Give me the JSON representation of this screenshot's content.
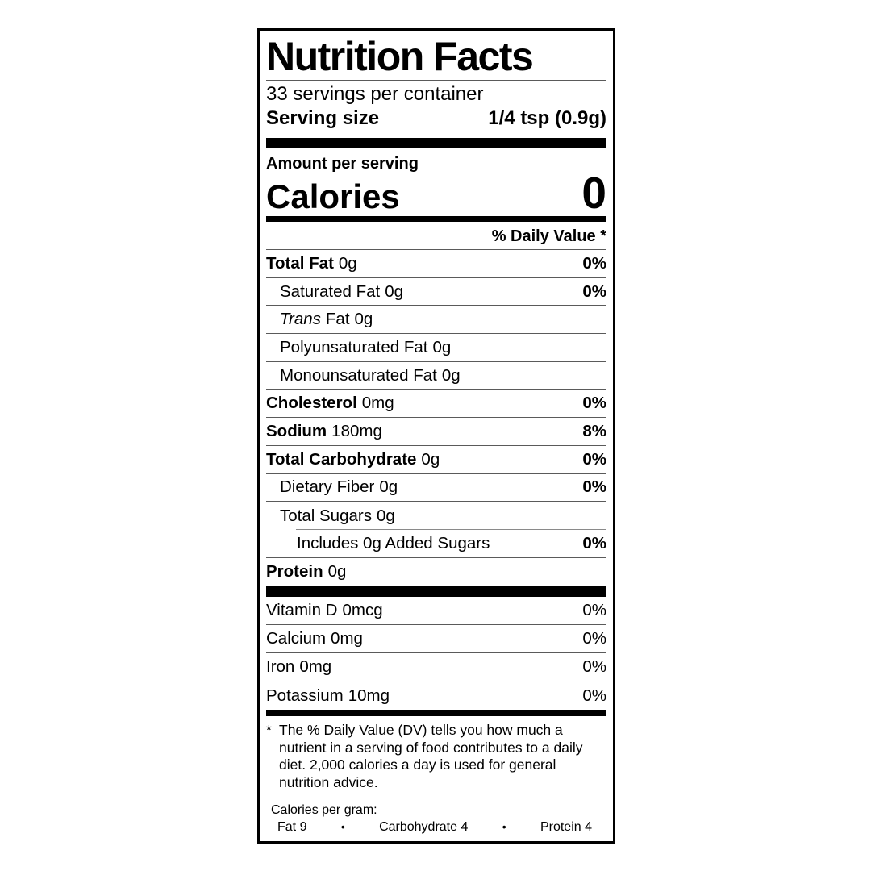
{
  "label": {
    "title": "Nutrition Facts",
    "servings_per_container": "33 servings per container",
    "serving_size": {
      "label": "Serving size",
      "value": "1/4 tsp (0.9g)"
    },
    "amount_per_serving": "Amount per serving",
    "calories": {
      "label": "Calories",
      "value": "0"
    },
    "daily_value_header": "% Daily Value *",
    "nutrients": [
      {
        "name": "Total Fat",
        "amount": "0g",
        "dv": "0%"
      },
      {
        "name": "Saturated Fat",
        "amount": "0g",
        "dv": "0%"
      },
      {
        "name_italic": "Trans",
        "name": "Fat",
        "amount": "0g",
        "dv": ""
      },
      {
        "name": "Polyunsaturated Fat",
        "amount": "0g",
        "dv": ""
      },
      {
        "name": "Monounsaturated Fat",
        "amount": "0g",
        "dv": ""
      },
      {
        "name": "Cholesterol",
        "amount": "0mg",
        "dv": "0%"
      },
      {
        "name": "Sodium",
        "amount": "180mg",
        "dv": "8%"
      },
      {
        "name": "Total Carbohydrate",
        "amount": "0g",
        "dv": "0%"
      },
      {
        "name": "Dietary Fiber",
        "amount": "0g",
        "dv": "0%"
      },
      {
        "name": "Total Sugars",
        "amount": "0g",
        "dv": ""
      },
      {
        "name": "Includes 0g Added Sugars",
        "amount": "",
        "dv": "0%"
      },
      {
        "name": "Protein",
        "amount": "0g",
        "dv": ""
      }
    ],
    "vitamins": [
      {
        "name": "Vitamin D",
        "amount": "0mcg",
        "dv": "0%"
      },
      {
        "name": "Calcium",
        "amount": "0mg",
        "dv": "0%"
      },
      {
        "name": "Iron",
        "amount": "0mg",
        "dv": "0%"
      },
      {
        "name": "Potassium",
        "amount": "10mg",
        "dv": "0%"
      }
    ],
    "footnote": {
      "marker": "*",
      "text": "The % Daily Value (DV) tells you how much a nutrient in a serving of food contributes to a daily diet. 2,000 calories a day is used for general nutrition advice."
    },
    "calories_per_gram": {
      "title": "Calories per gram:",
      "bullet": "•",
      "items": [
        "Fat 9",
        "Carbohydrate 4",
        "Protein 4"
      ]
    }
  }
}
